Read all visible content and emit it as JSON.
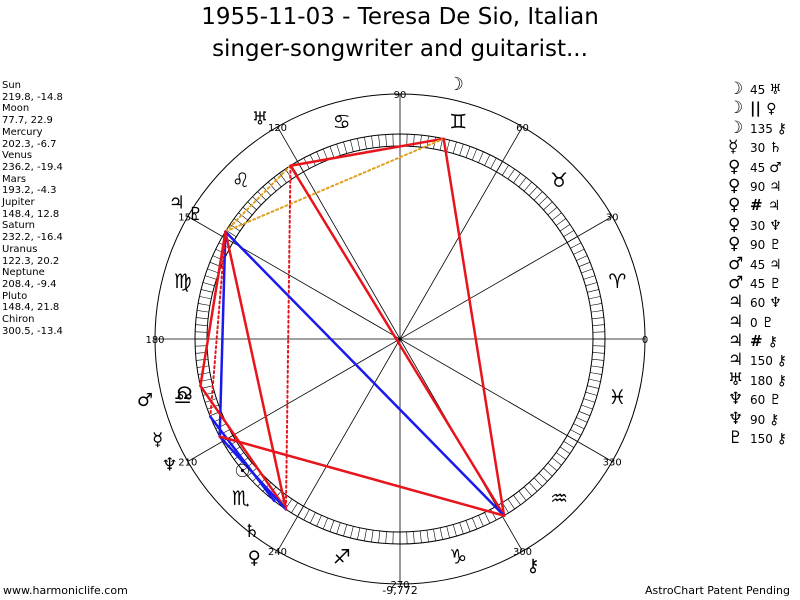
{
  "title_line1": "1955-11-03 - Teresa De Sio, Italian",
  "title_line2": "singer-songwriter and guitarist...",
  "planets": [
    {
      "name": "Sun",
      "values": "219.8, -14.8",
      "lon": 219.8,
      "glyph": "☉"
    },
    {
      "name": "Moon",
      "values": "77.7, 22.9",
      "lon": 77.7,
      "glyph": "☽"
    },
    {
      "name": "Mercury",
      "values": "202.3, -6.7",
      "lon": 202.3,
      "glyph": "☿"
    },
    {
      "name": "Venus",
      "values": "236.2, -19.4",
      "lon": 236.2,
      "glyph": "♀"
    },
    {
      "name": "Mars",
      "values": "193.2, -4.3",
      "lon": 193.2,
      "glyph": "♂"
    },
    {
      "name": "Jupiter",
      "values": "148.4, 12.8",
      "lon": 148.4,
      "glyph": "♃"
    },
    {
      "name": "Saturn",
      "values": "232.2, -16.4",
      "lon": 232.2,
      "glyph": "♄"
    },
    {
      "name": "Uranus",
      "values": "122.3, 20.2",
      "lon": 122.3,
      "glyph": "♅"
    },
    {
      "name": "Neptune",
      "values": "208.4, -9.4",
      "lon": 208.4,
      "glyph": "♆"
    },
    {
      "name": "Pluto",
      "values": "148.4, 21.8",
      "lon": 148.4,
      "glyph": "♇"
    },
    {
      "name": "Chiron",
      "values": "300.5, -13.4",
      "lon": 300.5,
      "glyph": "⚷"
    }
  ],
  "node_glyph": "☊",
  "aspects": [
    {
      "p1": "☽",
      "angle": "45",
      "p2": "♅"
    },
    {
      "p1": "☽",
      "angle": "||",
      "p2": "♀"
    },
    {
      "p1": "☽",
      "angle": "135",
      "p2": "⚷"
    },
    {
      "p1": "☿",
      "angle": "30",
      "p2": "♄"
    },
    {
      "p1": "♀",
      "angle": "45",
      "p2": "♂"
    },
    {
      "p1": "♀",
      "angle": "90",
      "p2": "♃"
    },
    {
      "p1": "♀",
      "angle": "#",
      "p2": "♃"
    },
    {
      "p1": "♀",
      "angle": "30",
      "p2": "♆"
    },
    {
      "p1": "♀",
      "angle": "90",
      "p2": "♇"
    },
    {
      "p1": "♂",
      "angle": "45",
      "p2": "♃"
    },
    {
      "p1": "♂",
      "angle": "45",
      "p2": "♇"
    },
    {
      "p1": "♃",
      "angle": "60",
      "p2": "♆"
    },
    {
      "p1": "♃",
      "angle": "0",
      "p2": "♇"
    },
    {
      "p1": "♃",
      "angle": "#",
      "p2": "⚷"
    },
    {
      "p1": "♃",
      "angle": "150",
      "p2": "⚷"
    },
    {
      "p1": "♅",
      "angle": "180",
      "p2": "⚷"
    },
    {
      "p1": "♆",
      "angle": "60",
      "p2": "♇"
    },
    {
      "p1": "♆",
      "angle": "90",
      "p2": "⚷"
    },
    {
      "p1": "♇",
      "angle": "150",
      "p2": "⚷"
    }
  ],
  "zodiac": [
    "♈",
    "♉",
    "♊",
    "♋",
    "♌",
    "♍",
    "♎",
    "♏",
    "♐",
    "♑",
    "♒",
    "♓"
  ],
  "degree_labels": [
    "0",
    "30",
    "60",
    "90",
    "120",
    "150",
    "180",
    "210",
    "240",
    "270",
    "300",
    "330"
  ],
  "center_value": "-9,772",
  "footer_left": "www.harmoniclife.com",
  "footer_right": "AstroChart Patent Pending",
  "colors": {
    "red": "#e8141c",
    "blue": "#1a1aee",
    "orange": "#e0a020"
  },
  "lines": [
    {
      "a": 77.7,
      "b": 122.3,
      "style": "red"
    },
    {
      "a": 77.7,
      "b": 148.4,
      "style": "orange-dotted"
    },
    {
      "a": 77.7,
      "b": 300.5,
      "style": "red"
    },
    {
      "a": 122.3,
      "b": 148.4,
      "style": "orange-dotted"
    },
    {
      "a": 122.3,
      "b": 236.2,
      "style": "red-dotted"
    },
    {
      "a": 122.3,
      "b": 300.5,
      "style": "red"
    },
    {
      "a": 148.4,
      "b": 236.2,
      "style": "red"
    },
    {
      "a": 148.4,
      "b": 208.4,
      "style": "blue"
    },
    {
      "a": 148.4,
      "b": 300.5,
      "style": "blue"
    },
    {
      "a": 148.4,
      "b": 193.2,
      "style": "red"
    },
    {
      "a": 148.4,
      "b": 202.3,
      "style": "red-dotted"
    },
    {
      "a": 193.2,
      "b": 236.2,
      "style": "red"
    },
    {
      "a": 202.3,
      "b": 232.2,
      "style": "blue"
    },
    {
      "a": 208.4,
      "b": 236.2,
      "style": "blue"
    },
    {
      "a": 208.4,
      "b": 300.5,
      "style": "red"
    },
    {
      "a": 236.2,
      "b": 148.4,
      "style": "red-dotted"
    }
  ]
}
